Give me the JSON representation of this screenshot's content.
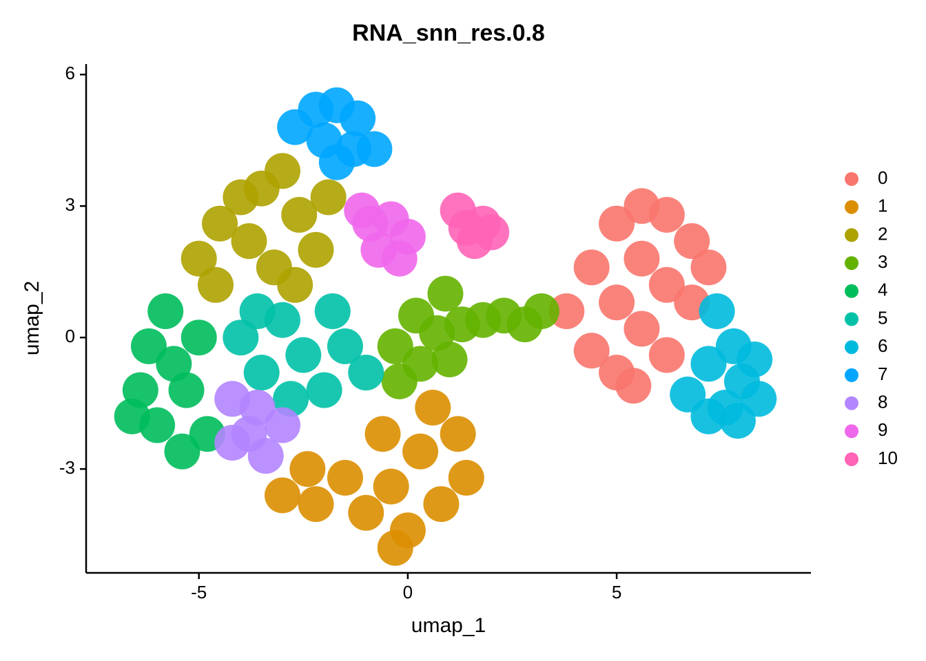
{
  "chart_data": {
    "type": "scatter",
    "title": "RNA_snn_res.0.8",
    "x_label": "umap_1",
    "y_label": "umap_2",
    "xlim": [
      -7.7,
      9.65
    ],
    "ylim": [
      -5.37,
      6.24
    ],
    "xticks": [
      -5,
      0,
      5
    ],
    "yticks": [
      -3,
      0,
      3,
      6
    ],
    "grid": false,
    "legend": "right",
    "series": [
      {
        "name": "0",
        "color": "#F8766D",
        "x": [
          3.8,
          4.4,
          4.4,
          5.0,
          5.0,
          5.0,
          5.6,
          5.6,
          5.6,
          6.2,
          6.2,
          6.2,
          6.8,
          6.8,
          7.2,
          5.4
        ],
        "y": [
          0.6,
          1.6,
          -0.3,
          2.6,
          0.8,
          -0.8,
          3.0,
          1.8,
          0.2,
          2.8,
          1.2,
          -0.4,
          2.2,
          0.8,
          1.6,
          -1.1
        ]
      },
      {
        "name": "1",
        "color": "#DB8E00",
        "x": [
          -3.0,
          -2.2,
          -1.5,
          -1.0,
          -0.4,
          0.0,
          0.3,
          0.8,
          1.2,
          1.4,
          -0.6,
          -2.4,
          0.6,
          -0.3
        ],
        "y": [
          -3.6,
          -3.8,
          -3.2,
          -4.0,
          -3.4,
          -4.4,
          -2.6,
          -3.8,
          -2.2,
          -3.2,
          -2.2,
          -3.0,
          -1.6,
          -4.8
        ]
      },
      {
        "name": "2",
        "color": "#AEA200",
        "x": [
          -5.0,
          -4.5,
          -4.0,
          -3.5,
          -3.0,
          -2.6,
          -3.8,
          -4.6,
          -3.2,
          -2.2,
          -1.9,
          -2.7
        ],
        "y": [
          1.8,
          2.6,
          3.2,
          3.4,
          3.8,
          2.8,
          2.2,
          1.2,
          1.6,
          2.0,
          3.2,
          1.2
        ]
      },
      {
        "name": "3",
        "color": "#64B200",
        "x": [
          -0.3,
          0.2,
          0.3,
          0.7,
          0.9,
          1.3,
          1.8,
          2.3,
          2.8,
          3.2,
          -0.2,
          1.0
        ],
        "y": [
          -0.2,
          0.5,
          -0.6,
          0.1,
          1.0,
          0.3,
          0.4,
          0.5,
          0.3,
          0.6,
          -1.0,
          -0.5
        ]
      },
      {
        "name": "4",
        "color": "#00BD5C",
        "x": [
          -6.4,
          -6.2,
          -5.8,
          -6.0,
          -5.4,
          -5.3,
          -5.0,
          -6.6,
          -4.8,
          -5.6
        ],
        "y": [
          -1.2,
          -0.2,
          0.6,
          -2.0,
          -2.6,
          -1.2,
          0.0,
          -1.8,
          -2.2,
          -0.6
        ]
      },
      {
        "name": "5",
        "color": "#00C1A7",
        "x": [
          -4.0,
          -3.5,
          -3.0,
          -2.5,
          -2.0,
          -1.5,
          -1.0,
          -2.8,
          -3.6,
          -1.8
        ],
        "y": [
          0.0,
          -0.8,
          0.4,
          -0.4,
          -1.2,
          -0.2,
          -0.8,
          -1.4,
          0.6,
          0.6
        ]
      },
      {
        "name": "6",
        "color": "#00BADE",
        "x": [
          6.7,
          7.2,
          7.4,
          7.6,
          7.8,
          8.0,
          8.3,
          8.4,
          7.2,
          7.9
        ],
        "y": [
          -1.3,
          -0.6,
          0.6,
          -1.6,
          -0.2,
          -1.0,
          -0.5,
          -1.4,
          -1.8,
          -1.9
        ]
      },
      {
        "name": "7",
        "color": "#00A6FF",
        "x": [
          -2.7,
          -2.2,
          -1.7,
          -1.2,
          -2.0,
          -1.3,
          -0.8,
          -1.7
        ],
        "y": [
          4.8,
          5.2,
          5.3,
          5.0,
          4.5,
          4.3,
          4.3,
          4.0
        ]
      },
      {
        "name": "8",
        "color": "#B385FF",
        "x": [
          -4.2,
          -3.8,
          -3.4,
          -3.0,
          -4.2,
          -3.6
        ],
        "y": [
          -1.4,
          -2.2,
          -2.7,
          -2.0,
          -2.4,
          -1.6
        ]
      },
      {
        "name": "9",
        "color": "#EF67EB",
        "x": [
          -0.9,
          -0.4,
          0.0,
          -0.7,
          -0.2,
          -1.1
        ],
        "y": [
          2.6,
          2.7,
          2.3,
          2.0,
          1.8,
          2.9
        ]
      },
      {
        "name": "10",
        "color": "#FF63B6",
        "x": [
          1.4,
          1.8,
          1.6,
          1.2,
          2.0
        ],
        "y": [
          2.5,
          2.6,
          2.2,
          2.9,
          2.4
        ]
      }
    ]
  }
}
